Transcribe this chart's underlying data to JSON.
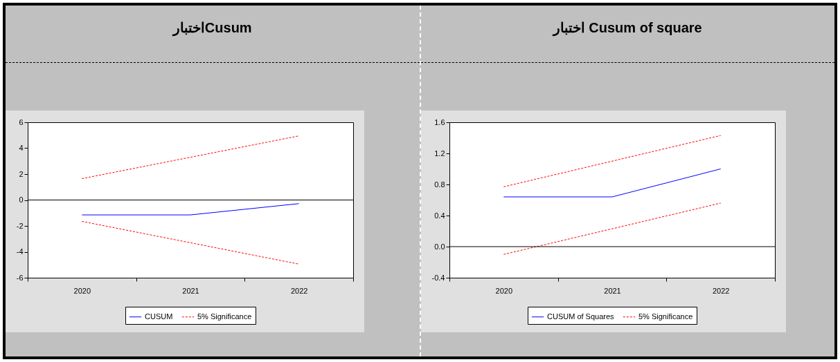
{
  "chart_data": [
    {
      "type": "line",
      "title": "اختبارCusum",
      "categories": [
        "2020",
        "2021",
        "2022"
      ],
      "ylim": [
        -6,
        6
      ],
      "yticks": [
        -6,
        -4,
        -2,
        0,
        2,
        4,
        6
      ],
      "grid": false,
      "legend": "bottom",
      "series": [
        {
          "name": "CUSUM",
          "color": "#0000ff",
          "line_style": "solid",
          "values": [
            -1.15,
            -1.15,
            -0.28
          ]
        },
        {
          "name": "5% Significance",
          "color": "#ff0000",
          "line_style": "dashed",
          "values": [
            1.65,
            3.3,
            4.95
          ]
        },
        {
          "color": "#ff0000",
          "line_style": "dashed",
          "values": [
            -1.65,
            -3.3,
            -4.95
          ]
        }
      ],
      "ref_lines": [
        {
          "axis": "y",
          "value": 0,
          "color": "#000000"
        }
      ]
    },
    {
      "type": "line",
      "title": "اختبار Cusum of square",
      "categories": [
        "2020",
        "2021",
        "2022"
      ],
      "ylim": [
        -0.4,
        1.6
      ],
      "yticks": [
        -0.4,
        {
          "value": 0,
          "label": "0.0"
        },
        0.4,
        0.8,
        1.2,
        1.6
      ],
      "grid": false,
      "legend": "bottom",
      "series": [
        {
          "name": "CUSUM of Squares",
          "color": "#0000ff",
          "line_style": "solid",
          "values": [
            0.64,
            0.64,
            1.0
          ]
        },
        {
          "name": "5% Significance",
          "color": "#ff0000",
          "line_style": "dashed",
          "values": [
            0.77,
            1.1,
            1.43
          ]
        },
        {
          "color": "#ff0000",
          "line_style": "dashed",
          "values": [
            -0.1,
            0.23,
            0.56
          ]
        }
      ],
      "ref_lines": [
        {
          "axis": "y",
          "value": 0,
          "color": "#000000"
        }
      ]
    }
  ]
}
